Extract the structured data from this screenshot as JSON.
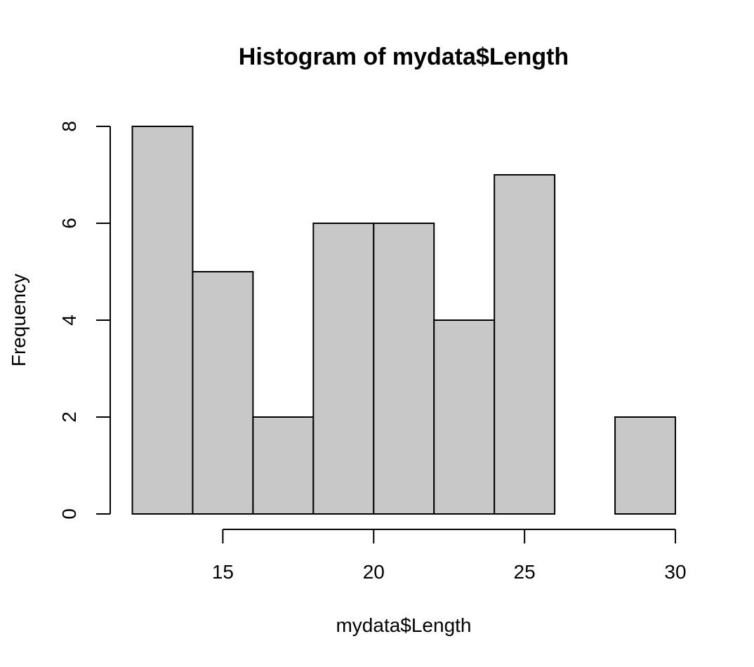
{
  "chart_data": {
    "type": "bar",
    "title": "Histogram of mydata$Length",
    "xlabel": "mydata$Length",
    "ylabel": "Frequency",
    "bins": [
      {
        "start": 12,
        "end": 14,
        "count": 8
      },
      {
        "start": 14,
        "end": 16,
        "count": 5
      },
      {
        "start": 16,
        "end": 18,
        "count": 2
      },
      {
        "start": 18,
        "end": 20,
        "count": 6
      },
      {
        "start": 20,
        "end": 22,
        "count": 6
      },
      {
        "start": 22,
        "end": 24,
        "count": 4
      },
      {
        "start": 24,
        "end": 26,
        "count": 7
      },
      {
        "start": 26,
        "end": 28,
        "count": 0
      },
      {
        "start": 28,
        "end": 30,
        "count": 2
      }
    ],
    "x_ticks": [
      15,
      20,
      25,
      30
    ],
    "y_ticks": [
      0,
      2,
      4,
      6,
      8
    ],
    "xlim": [
      12,
      30
    ],
    "ylim": [
      0,
      8
    ],
    "grid": false,
    "bar_fill": "#c8c8c8",
    "bar_stroke": "#000000"
  }
}
